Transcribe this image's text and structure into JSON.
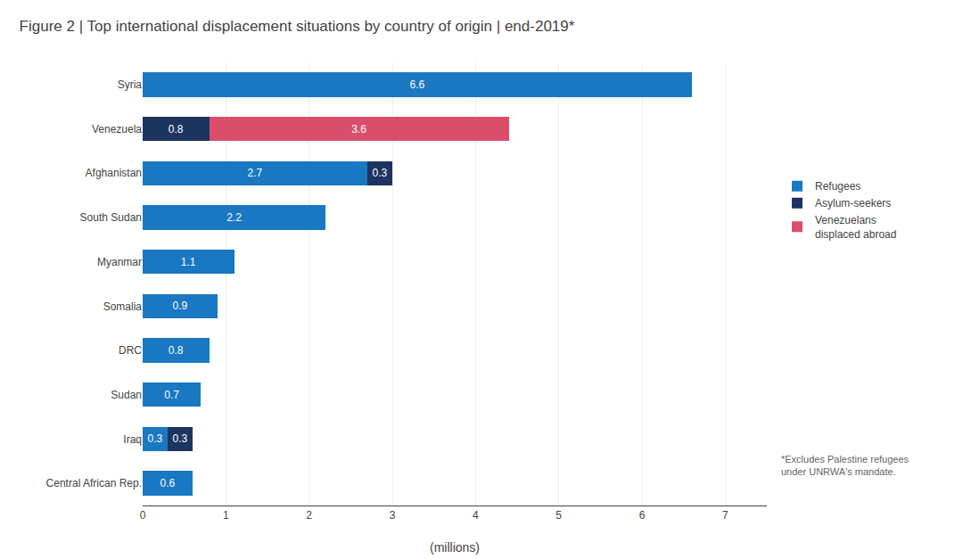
{
  "chart_data": {
    "type": "bar",
    "orientation": "horizontal",
    "stacked": true,
    "title": "Figure 2 | Top international displacement situations by country of origin | end-2019*",
    "x_label": "(millions)",
    "categories": [
      "Syria",
      "Venezuela",
      "Afghanistan",
      "South Sudan",
      "Myanmar",
      "Somalia",
      "DRC",
      "Sudan",
      "Iraq",
      "Central African Rep."
    ],
    "series": [
      {
        "name": "Refugees",
        "color": "#1a78c2",
        "values": [
          6.6,
          0.0,
          2.7,
          2.2,
          1.1,
          0.9,
          0.8,
          0.7,
          0.3,
          0.6
        ]
      },
      {
        "name": "Asylum-seekers",
        "color": "#1d3461",
        "values": [
          0.0,
          0.8,
          0.3,
          0.0,
          0.0,
          0.0,
          0.0,
          0.0,
          0.3,
          0.0
        ]
      },
      {
        "name": "Venezuelans\ndisplaced abroad",
        "color": "#d94f6b",
        "values": [
          0.0,
          3.6,
          0.0,
          0.0,
          0.0,
          0.0,
          0.0,
          0.0,
          0.0,
          0.0
        ]
      }
    ],
    "xlim": [
      0,
      7.5
    ],
    "xticks": [
      0,
      1,
      2,
      3,
      4,
      5,
      6,
      7
    ],
    "grid": true,
    "data_labels": true,
    "legend": "right",
    "annotations": [
      "*Excludes Palestine refugees\nunder UNRWA's mandate."
    ]
  }
}
